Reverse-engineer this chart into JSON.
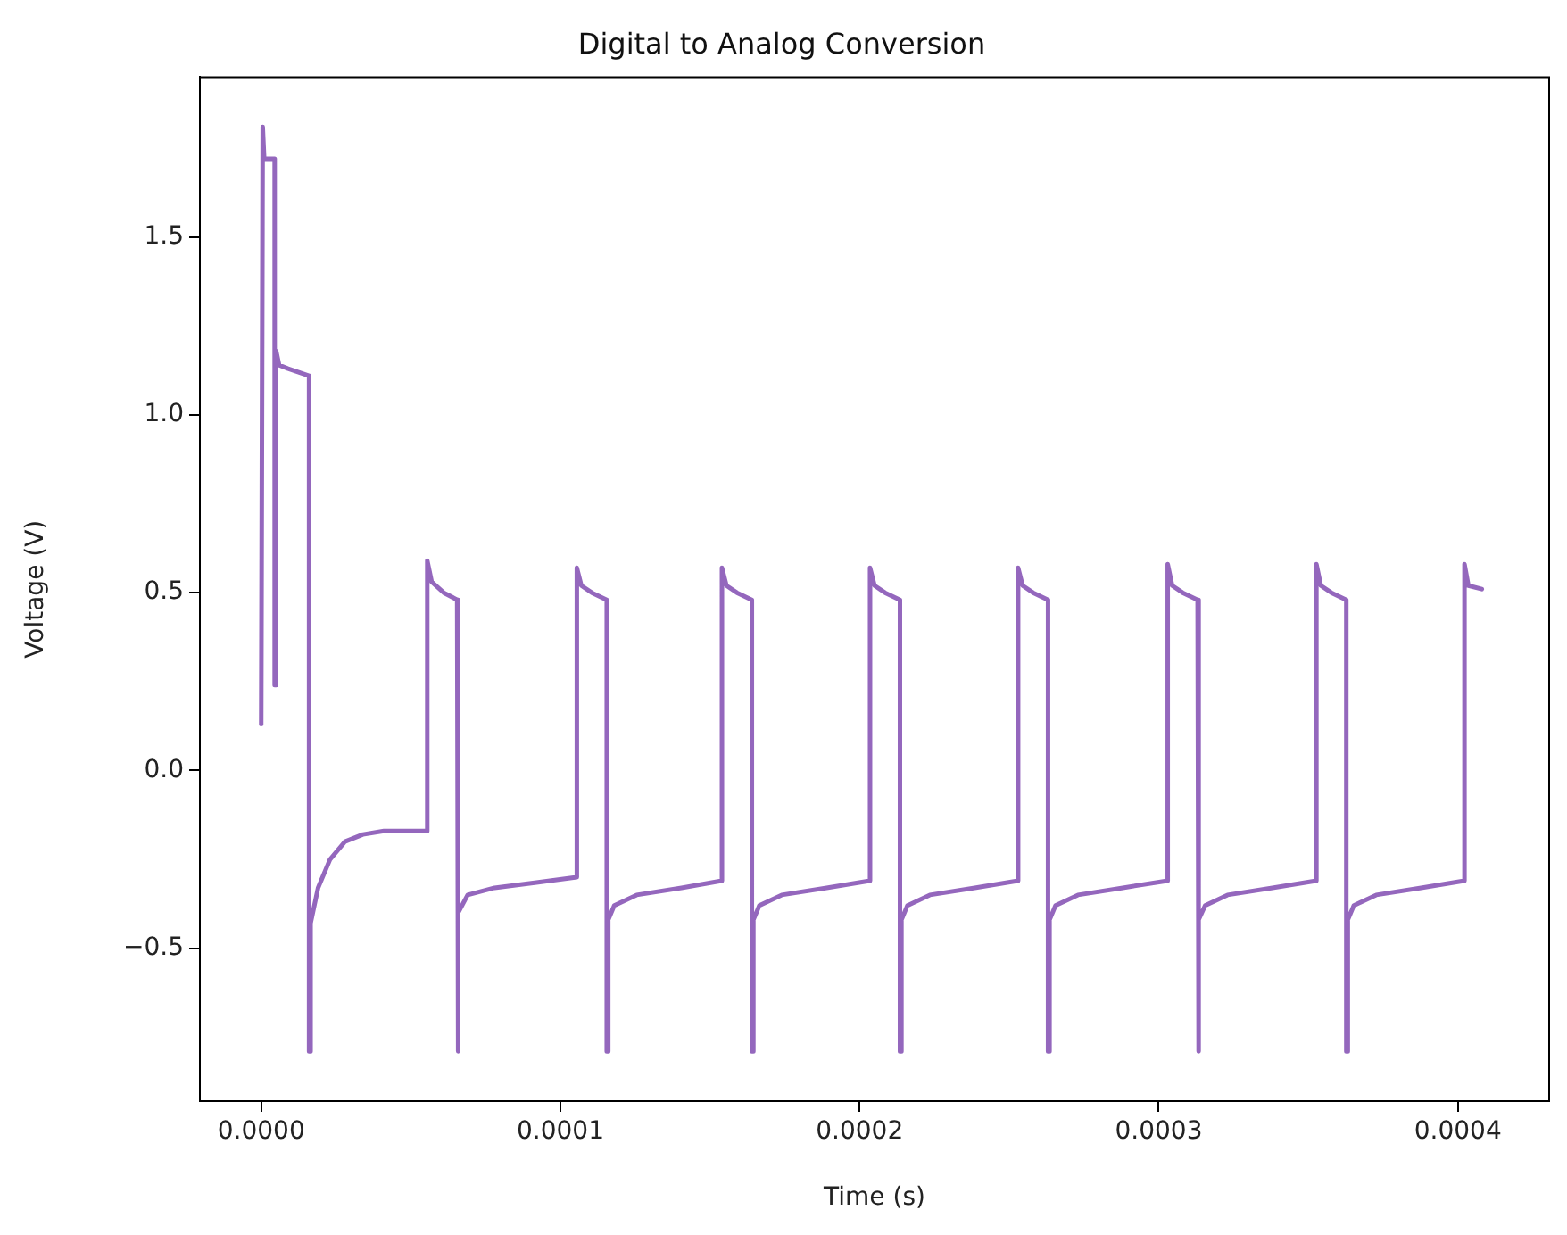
{
  "chart_data": {
    "type": "line",
    "title": "Digital to Analog Conversion",
    "xlabel": "Time (s)",
    "ylabel": "Voltage (V)",
    "color": "#9467bd",
    "x": [
      0,
      5e-07,
      1e-06,
      4.5e-06,
      4.5e-06,
      5e-06,
      5e-06,
      6e-06,
      9e-06,
      1.6e-05,
      1.6e-05,
      1.65e-05,
      1.65e-05,
      1.9e-05,
      2.3e-05,
      2.8e-05,
      3.4e-05,
      4.1e-05,
      5.55e-05,
      5.55e-05,
      5.7e-05,
      6.1e-05,
      6.55e-05,
      6.55e-05,
      6.6e-05,
      6.6e-05,
      6.9e-05,
      7.8e-05,
      9.2e-05,
      0.0001055,
      0.0001055,
      0.000107,
      0.0001105,
      0.0001155,
      0.0001155,
      0.000116,
      0.000116,
      0.000118,
      0.0001255,
      0.0001405,
      0.000154,
      0.000154,
      0.0001555,
      0.000159,
      0.000164,
      0.000164,
      0.0001645,
      0.0001645,
      0.0001665,
      0.000174,
      0.000189,
      0.0002035,
      0.0002035,
      0.000205,
      0.0002085,
      0.0002135,
      0.0002135,
      0.000214,
      0.000214,
      0.000216,
      0.0002235,
      0.0002385,
      0.000253,
      0.000253,
      0.0002545,
      0.000258,
      0.000263,
      0.000263,
      0.0002635,
      0.0002635,
      0.0002655,
      0.000273,
      0.000288,
      0.000303,
      0.000303,
      0.0003045,
      0.000308,
      0.000313,
      0.000313,
      0.0003135,
      0.0003135,
      0.0003155,
      0.000323,
      0.000338,
      0.0003527,
      0.0003527,
      0.0003542,
      0.0003577,
      0.0003627,
      0.0003627,
      0.0003632,
      0.0003632,
      0.0003652,
      0.0003727,
      0.0003877,
      0.0004022,
      0.0004022,
      0.0004035,
      0.000408
    ],
    "values": [
      0.13,
      1.81,
      1.72,
      1.72,
      0.24,
      0.24,
      1.18,
      1.14,
      1.13,
      1.11,
      -0.79,
      -0.79,
      -0.43,
      -0.33,
      -0.25,
      -0.2,
      -0.18,
      -0.17,
      -0.17,
      0.59,
      0.53,
      0.5,
      0.48,
      -0.79,
      -0.79,
      -0.4,
      -0.35,
      -0.33,
      -0.315,
      -0.3,
      0.57,
      0.52,
      0.5,
      0.48,
      -0.79,
      -0.79,
      -0.42,
      -0.38,
      -0.35,
      -0.33,
      -0.31,
      0.57,
      0.52,
      0.5,
      0.48,
      -0.79,
      -0.79,
      -0.42,
      -0.38,
      -0.35,
      -0.33,
      -0.31,
      0.57,
      0.52,
      0.5,
      0.48,
      -0.79,
      -0.79,
      -0.42,
      -0.38,
      -0.35,
      -0.33,
      -0.31,
      0.57,
      0.52,
      0.5,
      0.48,
      -0.79,
      -0.79,
      -0.42,
      -0.38,
      -0.35,
      -0.33,
      -0.31,
      0.58,
      0.52,
      0.5,
      0.48,
      -0.79,
      -0.79,
      -0.42,
      -0.38,
      -0.35,
      -0.33,
      -0.31,
      0.58,
      0.52,
      0.5,
      0.48,
      -0.79,
      -0.79,
      -0.42,
      -0.38,
      -0.35,
      -0.33,
      -0.31,
      0.58,
      0.52,
      0.51
    ],
    "xlim": [
      -2.05e-05,
      0.0004305
    ],
    "ylim": [
      -0.93,
      1.95
    ],
    "xticks": [
      {
        "value": 0,
        "label": "0.0000"
      },
      0.0001,
      0.0002,
      0.0003,
      0.0004
    ],
    "yticks": [
      {
        "value": -0.5,
        "label": "−0.5"
      },
      {
        "value": 0,
        "label": "0.0"
      },
      0.5,
      {
        "value": 1,
        "label": "1.0"
      },
      1.5
    ],
    "grid": false
  }
}
